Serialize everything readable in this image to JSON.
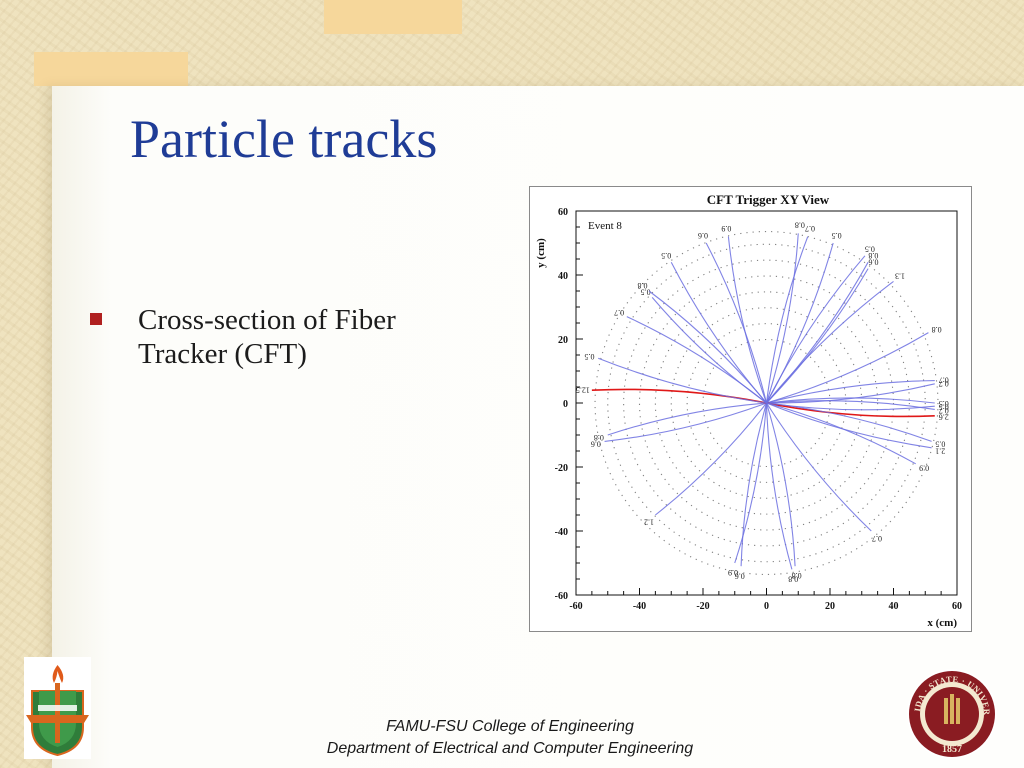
{
  "slide": {
    "title": "Particle tracks",
    "bullets": [
      "Cross-section of Fiber Tracker (CFT)"
    ],
    "footer_line1": "FAMU-FSU College of Engineering",
    "footer_line2": "Department of Electrical and Computer Engineering",
    "logo_left_icon": "famu-crest-icon",
    "logo_right_icon": "fsu-seal-icon",
    "logo_right_text": "FLORIDA · STATE · UNIVERSITY",
    "logo_right_year": "1857",
    "colors": {
      "title": "#1f3c96",
      "bullet": "#b0201f"
    }
  },
  "chart_data": {
    "type": "scatter",
    "title": "CFT Trigger XY View",
    "annotation": "Event 8",
    "xlabel": "x (cm)",
    "ylabel": "y (cm)",
    "xlim": [
      -60,
      60
    ],
    "ylim": [
      -60,
      60
    ],
    "xticks": [
      -60,
      -40,
      -20,
      0,
      20,
      40,
      60
    ],
    "yticks": [
      -60,
      -40,
      -20,
      0,
      20,
      40,
      60
    ],
    "xtick_labels": [
      "-60",
      "-40",
      "-20",
      "0",
      "20",
      "40",
      "60"
    ],
    "ytick_labels": [
      "-60",
      "-40",
      "-20",
      "0",
      "20",
      "40",
      "60"
    ],
    "detector_ring_radii": [
      20,
      25,
      30,
      35,
      40,
      45,
      50,
      54
    ],
    "colors": {
      "tracks": "#6b6ee0",
      "highlight": "#e01818",
      "rings": "#555555"
    },
    "tracks": [
      {
        "x": 10,
        "y": 53,
        "label": "0.8"
      },
      {
        "x": 13,
        "y": 52,
        "label": "0.7"
      },
      {
        "x": 21,
        "y": 50,
        "label": "0.5"
      },
      {
        "x": 31,
        "y": 46,
        "label": "0.5"
      },
      {
        "x": 32,
        "y": 44,
        "label": "0.8"
      },
      {
        "x": 40,
        "y": 38,
        "label": "1.3"
      },
      {
        "x": 51,
        "y": 22,
        "label": "0.8"
      },
      {
        "x": 53,
        "y": 7,
        "label": "0.7"
      },
      {
        "x": 53,
        "y": 6,
        "label": "0.7"
      },
      {
        "x": 53,
        "y": 0,
        "label": "0.5"
      },
      {
        "x": 53,
        "y": -1,
        "label": "0.5"
      },
      {
        "x": 53,
        "y": -2,
        "label": "0.7"
      },
      {
        "x": 53,
        "y": -4,
        "label": "2.6"
      },
      {
        "x": 52,
        "y": -12,
        "label": "0.5"
      },
      {
        "x": 52,
        "y": -14,
        "label": "2.1"
      },
      {
        "x": 47,
        "y": -19,
        "label": "0.9"
      },
      {
        "x": 33,
        "y": -40,
        "label": "0.7"
      },
      {
        "x": 9,
        "y": -51,
        "label": "0.8"
      },
      {
        "x": 8,
        "y": -52,
        "label": "0.8"
      },
      {
        "x": -10,
        "y": -50,
        "label": "0.9"
      },
      {
        "x": -8,
        "y": -51,
        "label": "0.6"
      },
      {
        "x": -35,
        "y": -35,
        "label": "1.2"
      },
      {
        "x": -50,
        "y": -10,
        "label": "0.8"
      },
      {
        "x": -51,
        "y": -12,
        "label": "0.6"
      },
      {
        "x": -55,
        "y": 4,
        "label": "12.5"
      },
      {
        "x": -53,
        "y": 14,
        "label": "0.5"
      },
      {
        "x": -44,
        "y": 27,
        "label": "0.7"
      },
      {
        "x": -36,
        "y": 33,
        "label": "0.5"
      },
      {
        "x": -37,
        "y": 35,
        "label": "0.8"
      },
      {
        "x": -30,
        "y": 44,
        "label": "0.5"
      },
      {
        "x": -19,
        "y": 50,
        "label": "0.6"
      },
      {
        "x": -12,
        "y": 52,
        "label": "0.9"
      },
      {
        "x": 32,
        "y": 42,
        "label": "0.6"
      }
    ]
  }
}
